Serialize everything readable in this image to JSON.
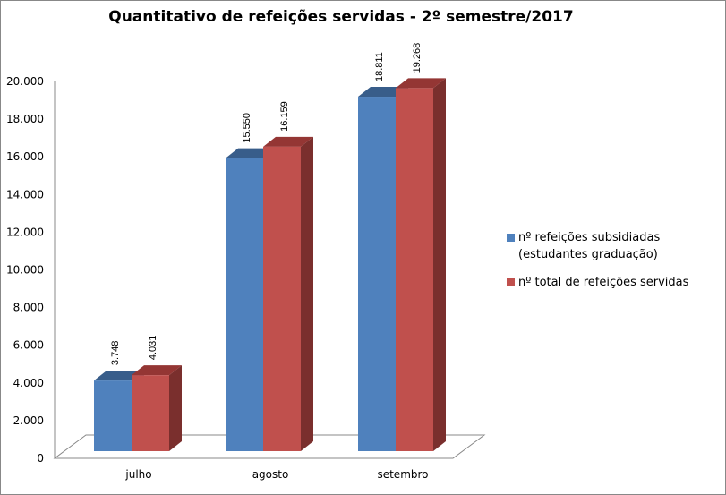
{
  "chart_data": {
    "type": "bar",
    "style": "3d-clustered-column",
    "title": "Quantitativo  de refeições servidas - 2º semestre/2017",
    "categories": [
      "julho",
      "agosto",
      "setembro"
    ],
    "series": [
      {
        "name": "nº refeições subsidiadas (estudantes graduação)",
        "values": [
          3748,
          15550,
          18811
        ],
        "labels": [
          "3.748",
          "15.550",
          "18.811"
        ],
        "color": "#4f81bd"
      },
      {
        "name": "nº total de refeições servidas",
        "values": [
          4031,
          16159,
          19268
        ],
        "labels": [
          "4.031",
          "16.159",
          "19.268"
        ],
        "color": "#c0504d"
      }
    ],
    "ylim": [
      0,
      20000
    ],
    "yticks": [
      0,
      2000,
      4000,
      6000,
      8000,
      10000,
      12000,
      14000,
      16000,
      18000,
      20000
    ],
    "ytick_labels": [
      "0",
      "2.000",
      "4.000",
      "6.000",
      "8.000",
      "10.000",
      "12.000",
      "14.000",
      "16.000",
      "18.000",
      "20.000"
    ],
    "grid": false,
    "legend": "right"
  }
}
